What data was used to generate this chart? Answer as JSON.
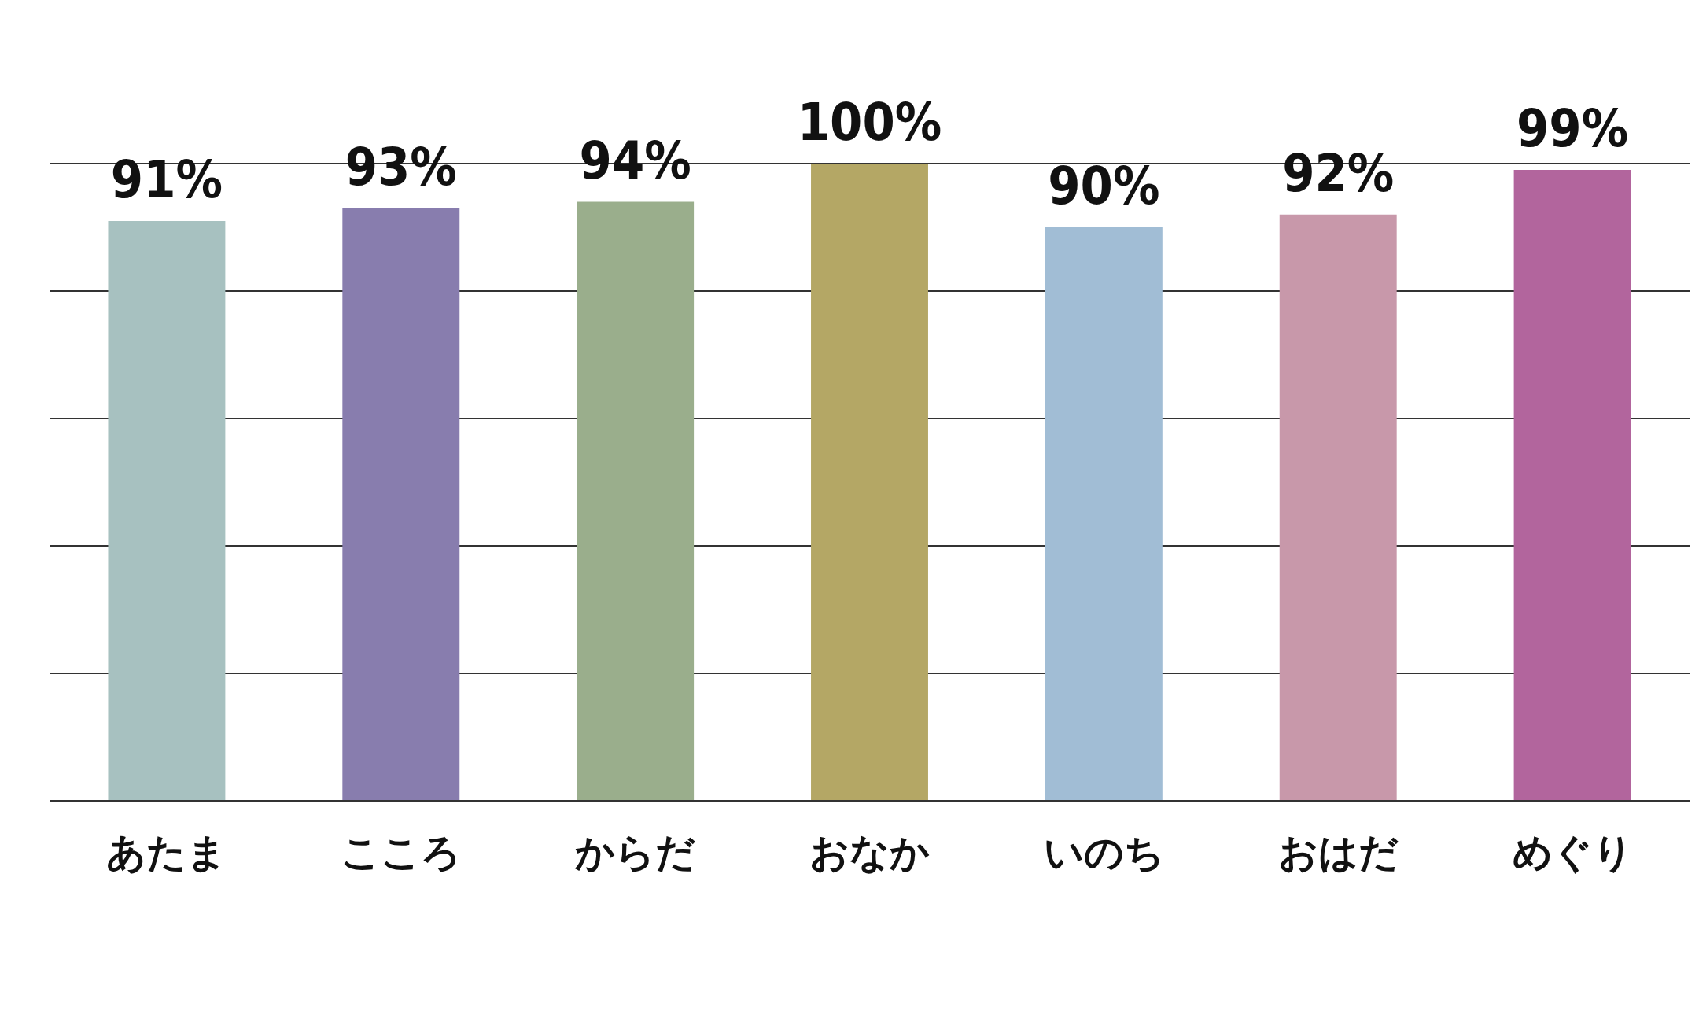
{
  "chart_data": {
    "type": "bar",
    "categories": [
      "あたま",
      "こころ",
      "からだ",
      "おなか",
      "いのち",
      "おはだ",
      "めぐり"
    ],
    "values": [
      91,
      93,
      94,
      100,
      90,
      92,
      99
    ],
    "colors": [
      "#a7c1c0",
      "#887dae",
      "#9aae8c",
      "#b4a765",
      "#a1bdd5",
      "#c898aa",
      "#b2659d"
    ],
    "value_labels": [
      "91%",
      "93%",
      "94%",
      "100%",
      "90%",
      "92%",
      "99%"
    ],
    "ylim": [
      0,
      100
    ],
    "yticks": [
      {
        "value": 0,
        "label": null
      },
      {
        "value": 20,
        "label": null
      },
      {
        "value": 40,
        "label": null
      },
      {
        "value": 60,
        "label": null
      },
      {
        "value": 80,
        "label": null
      },
      {
        "value": 100,
        "label": null
      }
    ],
    "grid": "y",
    "tick_labels": "x",
    "legend": false
  }
}
